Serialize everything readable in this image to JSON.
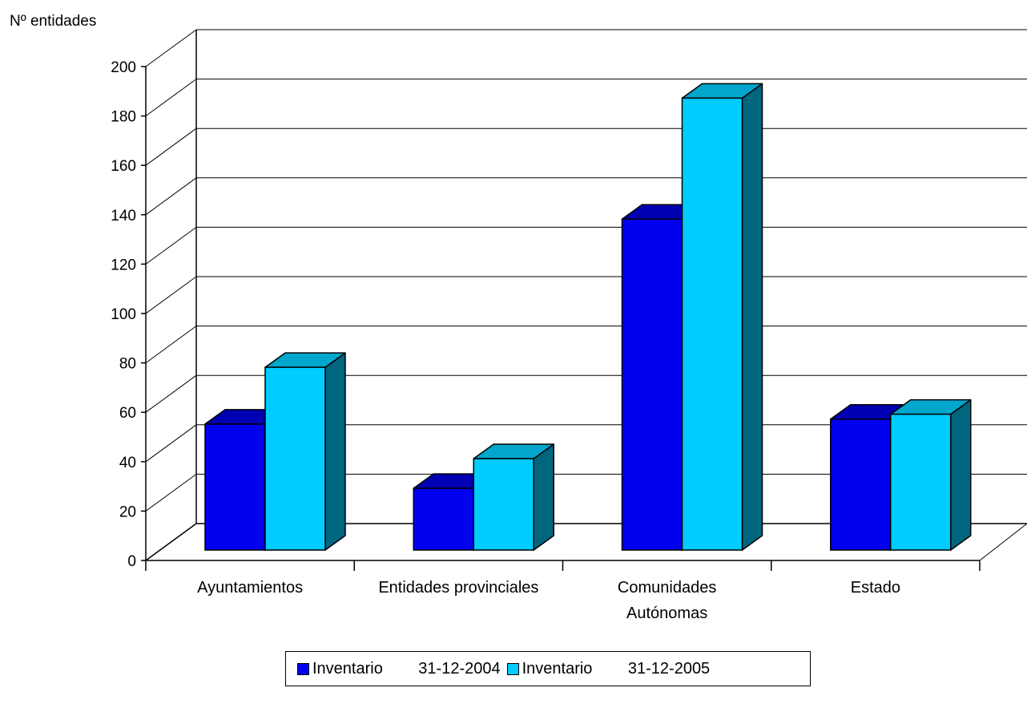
{
  "chart_data": {
    "type": "bar",
    "title": "",
    "ylabel": "Nº entidades",
    "xlabel": "",
    "categories": [
      [
        "Ayuntamientos"
      ],
      [
        "Entidades provinciales"
      ],
      [
        "Comunidades",
        "Autónomas"
      ],
      [
        "Estado"
      ]
    ],
    "series": [
      {
        "name": "Inventario        31-12-2004",
        "values": [
          51,
          25,
          134,
          53
        ],
        "color": "#0000ee",
        "top_color": "#0000b3"
      },
      {
        "name": "Inventario        31-12-2005",
        "values": [
          74,
          37,
          183,
          55
        ],
        "color": "#00ccff",
        "top_color": "#00a6cc"
      }
    ],
    "ylim": [
      0,
      200
    ],
    "yticks": [
      0,
      20,
      40,
      60,
      80,
      100,
      120,
      140,
      160,
      180,
      200
    ],
    "grid": true,
    "style": "3d-column",
    "side_color": "#006680",
    "legend_position": "bottom"
  }
}
